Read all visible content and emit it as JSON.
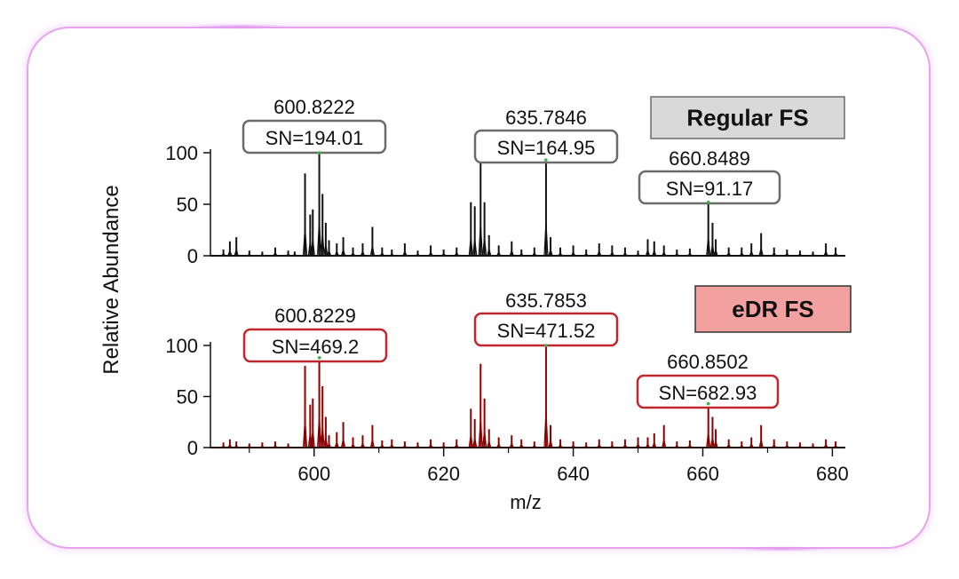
{
  "chart_data": {
    "type": "line",
    "xlabel": "m/z",
    "ylabel": "Relative Abundance",
    "xlim": [
      584,
      682
    ],
    "ylim": [
      0,
      100
    ],
    "x_ticks": [
      600,
      620,
      640,
      660,
      680
    ],
    "y_ticks": [
      0,
      50,
      100
    ],
    "y_tick_labels": [
      "0",
      "50",
      "100"
    ],
    "x_tick_labels": [
      "600",
      "620",
      "640",
      "660",
      "680"
    ],
    "panels": [
      {
        "name": "Regular FS",
        "color": "#111111",
        "box_border": "#6b6b6b",
        "legend_fill": "#d9d9d9",
        "legend_border": "#6b6b6b",
        "peaks": [
          {
            "mz": "600.8222",
            "sn": "SN=194.01",
            "x": 600.8222,
            "y": 100
          },
          {
            "mz": "635.7846",
            "sn": "SN=164.95",
            "x": 635.7846,
            "y": 93
          },
          {
            "mz": "660.8489",
            "sn": "SN=91.17",
            "x": 660.8489,
            "y": 52
          }
        ],
        "spectrum": [
          [
            586,
            6
          ],
          [
            587,
            14
          ],
          [
            588,
            18
          ],
          [
            590,
            5
          ],
          [
            592,
            4
          ],
          [
            594,
            8
          ],
          [
            596,
            5
          ],
          [
            597,
            4
          ],
          [
            598.6,
            80
          ],
          [
            599.4,
            40
          ],
          [
            599.8,
            45
          ],
          [
            600.8,
            100
          ],
          [
            601.3,
            60
          ],
          [
            601.8,
            32
          ],
          [
            602.3,
            15
          ],
          [
            603.5,
            12
          ],
          [
            604.5,
            18
          ],
          [
            606,
            8
          ],
          [
            607.5,
            12
          ],
          [
            609,
            28
          ],
          [
            610.5,
            8
          ],
          [
            612,
            6
          ],
          [
            614,
            12
          ],
          [
            616,
            5
          ],
          [
            618,
            10
          ],
          [
            620,
            6
          ],
          [
            622,
            8
          ],
          [
            624.2,
            52
          ],
          [
            624.8,
            48
          ],
          [
            625.7,
            90
          ],
          [
            626.3,
            52
          ],
          [
            627,
            20
          ],
          [
            628.5,
            10
          ],
          [
            630.5,
            14
          ],
          [
            632,
            6
          ],
          [
            634,
            8
          ],
          [
            635.8,
            93
          ],
          [
            636.5,
            18
          ],
          [
            638,
            8
          ],
          [
            640,
            10
          ],
          [
            642,
            6
          ],
          [
            644,
            12
          ],
          [
            646,
            10
          ],
          [
            648,
            8
          ],
          [
            650,
            5
          ],
          [
            651.5,
            16
          ],
          [
            652.5,
            14
          ],
          [
            654,
            10
          ],
          [
            656,
            6
          ],
          [
            658,
            7
          ],
          [
            660.85,
            52
          ],
          [
            661.5,
            32
          ],
          [
            662,
            16
          ],
          [
            664,
            8
          ],
          [
            666,
            8
          ],
          [
            667.5,
            12
          ],
          [
            669,
            22
          ],
          [
            671,
            8
          ],
          [
            673,
            6
          ],
          [
            675,
            5
          ],
          [
            677,
            4
          ],
          [
            679,
            12
          ],
          [
            680.5,
            8
          ]
        ]
      },
      {
        "name": "eDR FS",
        "color": "#8b0000",
        "box_border": "#c0262d",
        "legend_fill": "#f2a0a0",
        "legend_border": "#333333",
        "peaks": [
          {
            "mz": "600.8229",
            "sn": "SN=469.2",
            "x": 600.8229,
            "y": 88
          },
          {
            "mz": "635.7853",
            "sn": "SN=471.52",
            "x": 635.7853,
            "y": 100
          },
          {
            "mz": "660.8502",
            "sn": "SN=682.93",
            "x": 660.8502,
            "y": 43
          }
        ],
        "spectrum": [
          [
            586,
            5
          ],
          [
            587,
            8
          ],
          [
            588,
            6
          ],
          [
            590,
            4
          ],
          [
            592,
            5
          ],
          [
            594,
            6
          ],
          [
            596,
            4
          ],
          [
            598.6,
            80
          ],
          [
            599.4,
            42
          ],
          [
            599.8,
            48
          ],
          [
            600.8,
            88
          ],
          [
            601.3,
            60
          ],
          [
            601.8,
            30
          ],
          [
            602.3,
            12
          ],
          [
            603.5,
            15
          ],
          [
            604.5,
            25
          ],
          [
            606,
            10
          ],
          [
            607.5,
            12
          ],
          [
            609,
            22
          ],
          [
            610.5,
            7
          ],
          [
            612,
            8
          ],
          [
            614,
            6
          ],
          [
            616,
            5
          ],
          [
            618,
            8
          ],
          [
            620,
            5
          ],
          [
            622,
            8
          ],
          [
            624.2,
            38
          ],
          [
            624.8,
            28
          ],
          [
            625.7,
            82
          ],
          [
            626.3,
            48
          ],
          [
            627,
            18
          ],
          [
            628.5,
            10
          ],
          [
            630.5,
            12
          ],
          [
            632,
            8
          ],
          [
            634,
            6
          ],
          [
            635.8,
            100
          ],
          [
            636.5,
            22
          ],
          [
            638,
            8
          ],
          [
            640,
            6
          ],
          [
            642,
            5
          ],
          [
            644,
            8
          ],
          [
            646,
            6
          ],
          [
            648,
            8
          ],
          [
            650,
            10
          ],
          [
            651.5,
            10
          ],
          [
            652.5,
            14
          ],
          [
            654,
            22
          ],
          [
            656,
            6
          ],
          [
            658,
            7
          ],
          [
            660.85,
            43
          ],
          [
            661.5,
            30
          ],
          [
            662,
            18
          ],
          [
            664,
            8
          ],
          [
            666,
            6
          ],
          [
            667.5,
            10
          ],
          [
            669,
            22
          ],
          [
            671,
            8
          ],
          [
            673,
            6
          ],
          [
            675,
            5
          ],
          [
            677,
            4
          ],
          [
            679,
            8
          ],
          [
            680.5,
            6
          ]
        ]
      }
    ]
  }
}
